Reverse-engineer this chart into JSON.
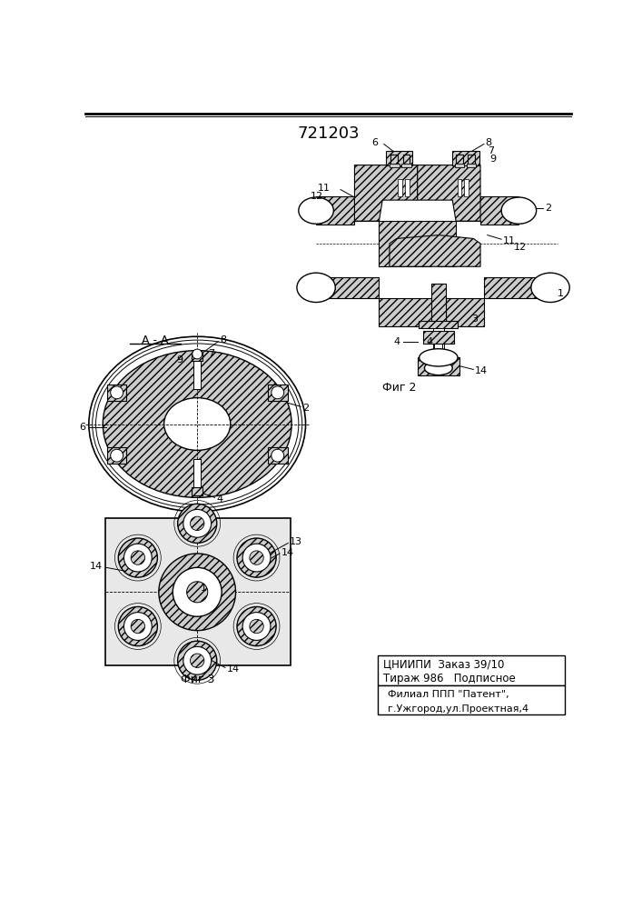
{
  "title": "721203",
  "fig2_label": "Фиг 2",
  "fig3_label": "Фиг 3",
  "section_label": "А - А",
  "footer_line1": "ЦНИИПИ  Заказ 39/10",
  "footer_line2": "Тираж 986   Подписное",
  "footer_line3": "Филиал ППП \"Патент\",",
  "footer_line4": "г.Ужгород,ул.Проектная,4",
  "hatch": "////"
}
